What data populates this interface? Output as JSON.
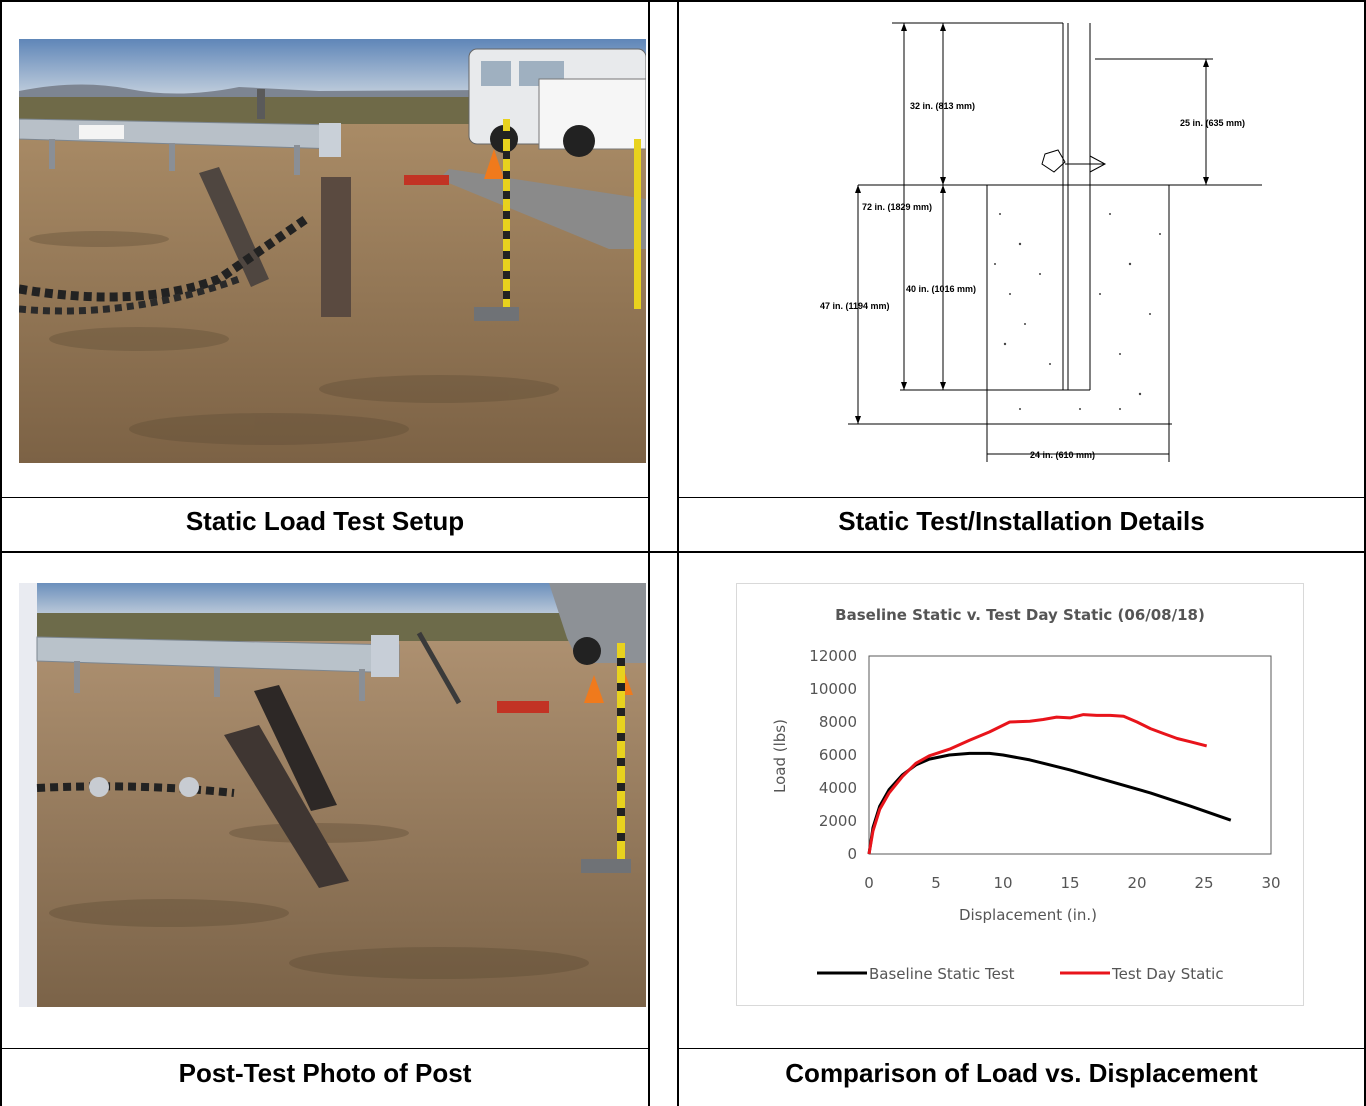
{
  "cells": {
    "top_left_caption": "Static Load Test Setup",
    "top_right_caption": "Static Test/Installation Details",
    "bottom_left_caption": "Post-Test Photo of Post",
    "bottom_right_caption": "Comparison of Load vs. Displacement"
  },
  "drawing": {
    "dim_32": "32 in. (813 mm)",
    "dim_25": "25 in. (635 mm)",
    "dim_72": "72 in. (1829 mm)",
    "dim_40": "40 in. (1016 mm)",
    "dim_47": "47 in. (1194 mm)",
    "dim_24": "24 in. (610 mm)"
  },
  "chart_data": {
    "type": "line",
    "title": "Baseline Static v. Test Day Static (06/08/18)",
    "xlabel": "Displacement (in.)",
    "ylabel": "Load (lbs)",
    "xlim": [
      0,
      30
    ],
    "ylim": [
      0,
      12000
    ],
    "xticks": [
      0,
      5,
      10,
      15,
      20,
      25,
      30
    ],
    "yticks": [
      0,
      2000,
      4000,
      6000,
      8000,
      10000,
      12000
    ],
    "grid": false,
    "legend": "bottom",
    "series": [
      {
        "name": "Baseline Static Test",
        "color": "#000000",
        "x": [
          0,
          0.3,
          0.8,
          1.5,
          2.5,
          3.5,
          4.5,
          6,
          7.5,
          9,
          10,
          12,
          15,
          18,
          21,
          24,
          27
        ],
        "y": [
          0,
          1600,
          2900,
          3900,
          4800,
          5400,
          5750,
          6000,
          6100,
          6100,
          6000,
          5700,
          5100,
          4400,
          3700,
          2900,
          2050
        ]
      },
      {
        "name": "Test Day Static",
        "color": "#e8141b",
        "x": [
          0,
          0.3,
          0.8,
          1.5,
          2.5,
          3.5,
          4.5,
          6,
          7.5,
          9,
          10.5,
          12,
          13,
          14,
          15,
          16,
          17,
          18,
          19,
          20,
          21,
          22,
          23,
          24,
          25.2
        ],
        "y": [
          0,
          1400,
          2700,
          3700,
          4700,
          5500,
          5950,
          6350,
          6900,
          7400,
          8000,
          8050,
          8150,
          8300,
          8250,
          8450,
          8400,
          8400,
          8350,
          8000,
          7600,
          7300,
          7000,
          6800,
          6550
        ]
      }
    ]
  }
}
